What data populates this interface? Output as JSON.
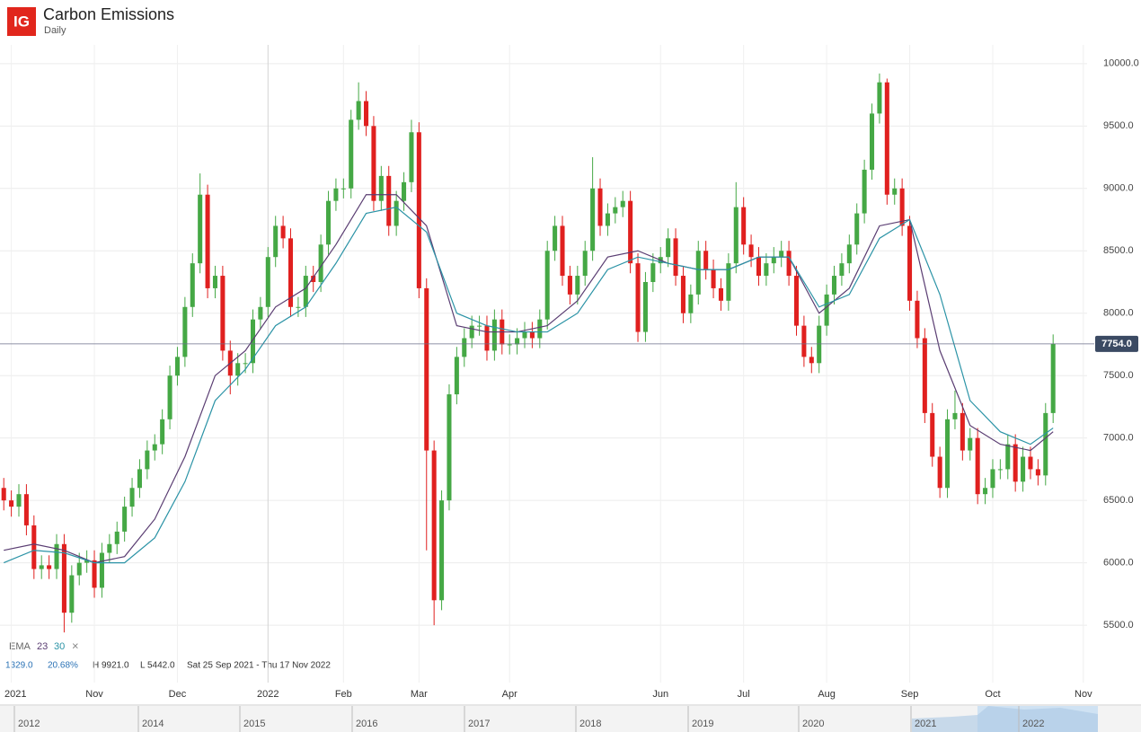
{
  "header": {
    "logo": "IG",
    "title": "Carbon Emissions",
    "interval": "Daily"
  },
  "chart_data": {
    "type": "candlestick",
    "up_color": "#45a845",
    "down_color": "#e0201f",
    "xlim": [
      -0.5,
      143.5
    ],
    "xticks": [
      {
        "value": 1,
        "label": "2021"
      },
      {
        "value": 12,
        "label": "Nov"
      },
      {
        "value": 23,
        "label": "Dec"
      },
      {
        "value": 35,
        "label": "2022"
      },
      {
        "value": 45,
        "label": "Feb"
      },
      {
        "value": 55,
        "label": "Mar"
      },
      {
        "value": 67,
        "label": "Apr"
      },
      {
        "value": 87,
        "label": "Jun"
      },
      {
        "value": 98,
        "label": "Jul"
      },
      {
        "value": 109,
        "label": "Aug"
      },
      {
        "value": 120,
        "label": "Sep"
      },
      {
        "value": 131,
        "label": "Oct"
      },
      {
        "value": 143,
        "label": "Nov"
      }
    ],
    "ylim": [
      5040,
      10150
    ],
    "yticks": [
      {
        "value": 5500,
        "label": "5500.0"
      },
      {
        "value": 6000,
        "label": "6000.0"
      },
      {
        "value": 6500,
        "label": "6500.0"
      },
      {
        "value": 7000,
        "label": "7000.0"
      },
      {
        "value": 7500,
        "label": "7500.0"
      },
      {
        "value": 8000,
        "label": "8000.0"
      },
      {
        "value": 8500,
        "label": "8500.0"
      },
      {
        "value": 9000,
        "label": "9000.0"
      },
      {
        "value": 9500,
        "label": "9500.0"
      },
      {
        "value": 10000,
        "label": "10000.0"
      }
    ],
    "grid": true,
    "open": [
      6600,
      6500,
      6450,
      6550,
      6300,
      5950,
      5980,
      5950,
      6150,
      5600,
      5900,
      6000,
      6020,
      5800,
      6080,
      6150,
      6250,
      6450,
      6600,
      6750,
      6900,
      6950,
      7150,
      7500,
      7650,
      8050,
      8400,
      8950,
      8200,
      8300,
      7700,
      7500,
      7600,
      7600,
      7950,
      8050,
      8450,
      8700,
      8600,
      8050,
      8050,
      8300,
      8250,
      8550,
      8900,
      9000,
      9000,
      9550,
      9700,
      9500,
      8900,
      9100,
      8700,
      8900,
      9050,
      9450,
      8200,
      6900,
      5700,
      6500,
      7350,
      7650,
      7800,
      7900,
      7900,
      7700,
      7950,
      7750,
      7750,
      7800,
      7850,
      7800,
      7950,
      8500,
      8700,
      8300,
      8150,
      8300,
      8500,
      9000,
      8700,
      8800,
      8850,
      8900,
      8400,
      7850,
      8250,
      8400,
      8450,
      8600,
      8300,
      8000,
      8150,
      8500,
      8350,
      8200,
      8100,
      8400,
      8850,
      8550,
      8450,
      8300,
      8400,
      8450,
      8500,
      8300,
      7900,
      7650,
      7600,
      7900,
      8150,
      8300,
      8400,
      8550,
      8800,
      9150,
      9600,
      9850,
      8950,
      9000,
      8700,
      8100,
      7800,
      7200,
      6850,
      6600,
      7150,
      7200,
      6900,
      7000,
      6550,
      6600,
      6750,
      6750,
      6950,
      6650,
      6850,
      6750,
      6700,
      7200
    ],
    "high": [
      6680,
      6580,
      6630,
      6630,
      6380,
      6060,
      6060,
      6230,
      6230,
      5980,
      6080,
      6100,
      6100,
      6160,
      6230,
      6330,
      6530,
      6680,
      6830,
      6980,
      7030,
      7230,
      7580,
      7730,
      8130,
      8480,
      9120,
      9030,
      8380,
      8380,
      7780,
      7680,
      7680,
      8030,
      8130,
      8530,
      8780,
      8780,
      8680,
      8130,
      8380,
      8380,
      8630,
      8980,
      9080,
      9080,
      9630,
      9850,
      9780,
      9580,
      9180,
      9180,
      8980,
      9130,
      9550,
      9530,
      8280,
      6980,
      6580,
      7430,
      7730,
      7880,
      7980,
      7980,
      7980,
      8030,
      8030,
      7830,
      7880,
      7930,
      7930,
      8030,
      8580,
      8780,
      8780,
      8380,
      8380,
      8580,
      9250,
      9080,
      8880,
      8930,
      8980,
      8980,
      8480,
      8330,
      8480,
      8530,
      8680,
      8680,
      8380,
      8230,
      8580,
      8580,
      8430,
      8280,
      8480,
      9050,
      8930,
      8630,
      8530,
      8480,
      8530,
      8580,
      8580,
      8380,
      7980,
      7730,
      7980,
      8230,
      8380,
      8480,
      8630,
      8880,
      9230,
      9680,
      9921,
      9880,
      9080,
      9080,
      8780,
      8180,
      7880,
      7280,
      6930,
      7230,
      7380,
      7280,
      7080,
      7080,
      6680,
      6830,
      6830,
      7030,
      7030,
      6930,
      6930,
      6830,
      7280,
      7830
    ],
    "low": [
      6420,
      6370,
      6370,
      6220,
      5870,
      5870,
      5870,
      5870,
      5442,
      5520,
      5820,
      5920,
      5720,
      5720,
      6000,
      6070,
      6170,
      6370,
      6520,
      6670,
      6820,
      6870,
      7070,
      7420,
      7570,
      7970,
      8320,
      8120,
      8120,
      7620,
      7350,
      7420,
      7520,
      7520,
      7870,
      7970,
      8370,
      8520,
      7970,
      7970,
      7970,
      8170,
      8170,
      8470,
      8820,
      8920,
      8920,
      9470,
      9420,
      8820,
      8820,
      8620,
      8620,
      8820,
      8970,
      8120,
      6100,
      5500,
      5620,
      6420,
      7270,
      7570,
      7720,
      7820,
      7620,
      7620,
      7670,
      7670,
      7670,
      7720,
      7720,
      7720,
      7870,
      8420,
      8220,
      8070,
      8070,
      8220,
      8420,
      8620,
      8620,
      8720,
      8770,
      8320,
      7770,
      7770,
      8170,
      8320,
      8370,
      8220,
      7920,
      7920,
      8070,
      8270,
      8120,
      8020,
      8020,
      8320,
      8470,
      8370,
      8220,
      8220,
      8320,
      8370,
      8220,
      7820,
      7570,
      7520,
      7520,
      7820,
      8070,
      8220,
      8320,
      8470,
      8720,
      9070,
      9520,
      8870,
      8870,
      8620,
      8020,
      7720,
      7120,
      6770,
      6520,
      6520,
      7070,
      6820,
      6820,
      6470,
      6470,
      6520,
      6670,
      6670,
      6570,
      6570,
      6670,
      6620,
      6620,
      7120
    ],
    "close": [
      6500,
      6450,
      6550,
      6300,
      5950,
      5980,
      5950,
      6150,
      5600,
      5900,
      6000,
      6020,
      5800,
      6080,
      6150,
      6250,
      6450,
      6600,
      6750,
      6900,
      6950,
      7150,
      7500,
      7650,
      8050,
      8400,
      8950,
      8200,
      8300,
      7700,
      7500,
      7600,
      7600,
      7950,
      8050,
      8450,
      8700,
      8600,
      8050,
      8050,
      8300,
      8250,
      8550,
      8900,
      9000,
      9000,
      9550,
      9700,
      9500,
      8900,
      9100,
      8700,
      8900,
      9050,
      9450,
      8200,
      6900,
      5700,
      6500,
      7350,
      7650,
      7800,
      7900,
      7900,
      7700,
      7950,
      7750,
      7750,
      7800,
      7850,
      7800,
      7950,
      8500,
      8700,
      8300,
      8150,
      8300,
      8500,
      9000,
      8700,
      8800,
      8850,
      8900,
      8400,
      7850,
      8250,
      8400,
      8450,
      8600,
      8300,
      8000,
      8150,
      8500,
      8350,
      8200,
      8100,
      8400,
      8850,
      8550,
      8450,
      8300,
      8400,
      8450,
      8500,
      8300,
      7900,
      7650,
      7600,
      7900,
      8150,
      8300,
      8400,
      8550,
      8800,
      9150,
      9600,
      9850,
      8950,
      9000,
      8700,
      8100,
      7800,
      7200,
      6850,
      6600,
      7150,
      7200,
      6900,
      7000,
      6550,
      6600,
      6750,
      6750,
      6950,
      6650,
      6850,
      6750,
      6700,
      7200,
      7754
    ],
    "indicator": "EMA",
    "series": [
      {
        "name": "23",
        "color": "#5a3d72",
        "x": [
          0,
          4,
          8,
          12,
          16,
          20,
          24,
          28,
          32,
          36,
          40,
          44,
          48,
          52,
          56,
          60,
          64,
          68,
          72,
          76,
          80,
          84,
          88,
          92,
          96,
          100,
          104,
          108,
          112,
          116,
          120,
          124,
          128,
          132,
          136,
          139
        ],
        "values": [
          6100,
          6150,
          6100,
          6000,
          6050,
          6350,
          6850,
          7500,
          7700,
          8050,
          8200,
          8550,
          8950,
          8950,
          8700,
          7900,
          7850,
          7850,
          7900,
          8100,
          8450,
          8500,
          8400,
          8350,
          8350,
          8450,
          8450,
          8000,
          8200,
          8700,
          8750,
          7700,
          7100,
          6950,
          6900,
          7050
        ]
      },
      {
        "name": "30",
        "color": "#2b93a6",
        "x": [
          0,
          4,
          8,
          12,
          16,
          20,
          24,
          28,
          32,
          36,
          40,
          44,
          48,
          52,
          56,
          60,
          64,
          68,
          72,
          76,
          80,
          84,
          88,
          92,
          96,
          100,
          104,
          108,
          112,
          116,
          120,
          124,
          128,
          132,
          136,
          139
        ],
        "values": [
          6000,
          6100,
          6080,
          6000,
          6000,
          6200,
          6650,
          7300,
          7550,
          7900,
          8050,
          8400,
          8800,
          8850,
          8650,
          8000,
          7900,
          7850,
          7850,
          8000,
          8350,
          8450,
          8400,
          8350,
          8350,
          8450,
          8450,
          8050,
          8150,
          8600,
          8750,
          8150,
          7300,
          7050,
          6950,
          7080
        ]
      }
    ],
    "remove": "×",
    "last_price": {
      "value": 7754,
      "label": "7754.0"
    },
    "stats": {
      "change": "1329.0",
      "change_pct": "20.68%",
      "high": "H 9921.0",
      "low": "L 5442.0",
      "range": "Sat 25 Sep 2021 - Thu 17 Nov 2022"
    }
  },
  "navigator": {
    "years": [
      "2012",
      "2014",
      "2015",
      "2016",
      "2017",
      "2018",
      "2019",
      "2020",
      "2021",
      "2022"
    ]
  }
}
